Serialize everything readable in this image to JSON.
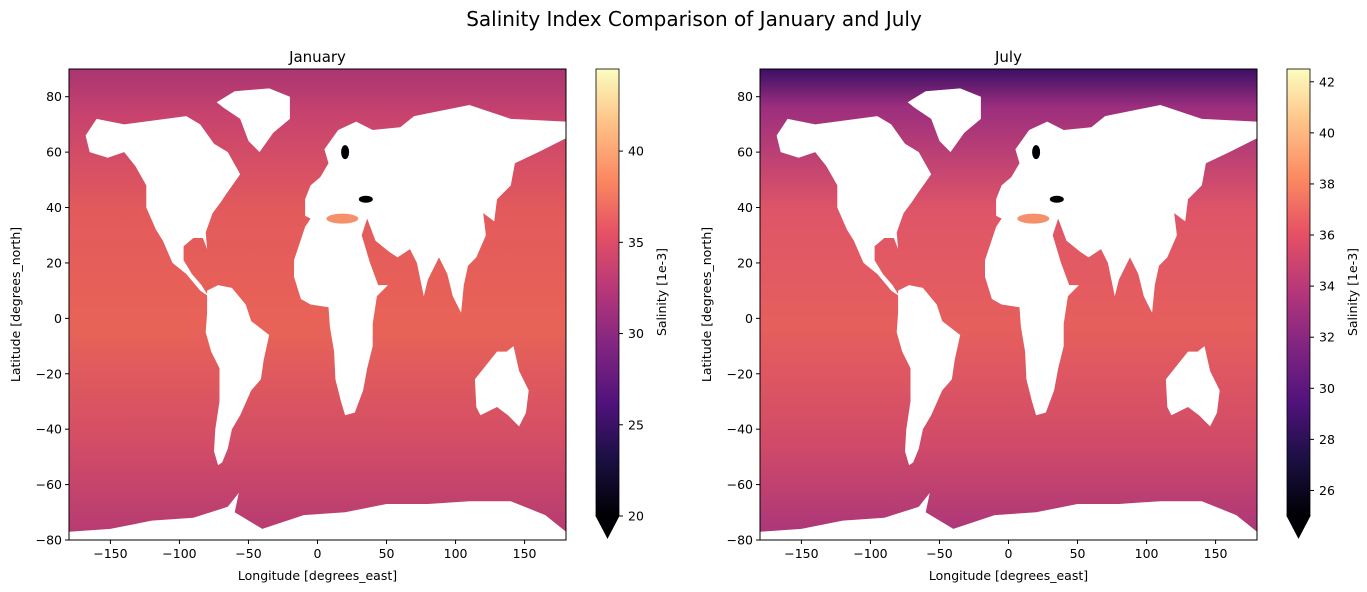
{
  "title": "Salinity Index Comparison of January and July",
  "chart_data": [
    {
      "type": "heatmap",
      "title": "January",
      "xlabel": "Longitude [degrees_east]",
      "ylabel": "Latitude [degrees_north]",
      "xlim": [
        -180,
        180
      ],
      "ylim": [
        -80,
        90
      ],
      "xticks": [
        -150,
        -100,
        -50,
        0,
        50,
        100,
        150
      ],
      "yticks": [
        -80,
        -60,
        -40,
        -20,
        0,
        20,
        40,
        60,
        80
      ],
      "colormap": "magma",
      "colorbar": {
        "label": "Salinity [1e-3]",
        "range": [
          20,
          44.5
        ],
        "ticks": [
          20,
          25,
          30,
          35,
          40
        ],
        "extend": "min"
      }
    },
    {
      "type": "heatmap",
      "title": "July",
      "xlabel": "Longitude [degrees_east]",
      "ylabel": "Latitude [degrees_north]",
      "xlim": [
        -180,
        180
      ],
      "ylim": [
        -80,
        90
      ],
      "xticks": [
        -150,
        -100,
        -50,
        0,
        50,
        100,
        150
      ],
      "yticks": [
        -80,
        -60,
        -40,
        -20,
        0,
        20,
        40,
        60,
        80
      ],
      "colormap": "magma",
      "colorbar": {
        "label": "Salinity [1e-3]",
        "range": [
          25,
          42.5
        ],
        "ticks": [
          26,
          28,
          30,
          32,
          34,
          36,
          38,
          40,
          42
        ],
        "extend": "min"
      }
    }
  ]
}
